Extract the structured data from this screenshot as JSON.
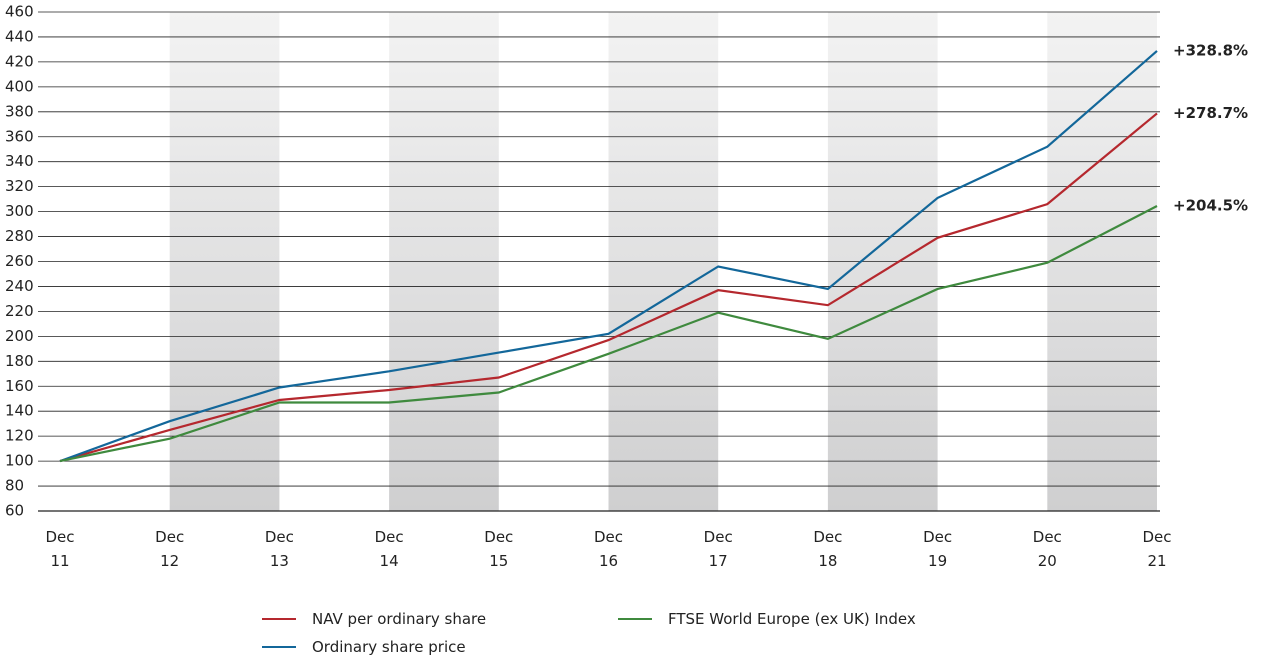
{
  "chart_data": {
    "type": "line",
    "categories": [
      "Dec 11",
      "Dec 12",
      "Dec 13",
      "Dec 14",
      "Dec 15",
      "Dec 16",
      "Dec 17",
      "Dec 18",
      "Dec 19",
      "Dec 20",
      "Dec 21"
    ],
    "series": [
      {
        "name": "NAV per ordinary share",
        "color": "#b5282e",
        "values": [
          100,
          125,
          149,
          157,
          167,
          197,
          237,
          225,
          279,
          306,
          378.7
        ],
        "end_label": "+278.7%"
      },
      {
        "name": "Ordinary share price",
        "color": "#13679a",
        "values": [
          100,
          132,
          159,
          172,
          187,
          202,
          256,
          238,
          311,
          352,
          428.8
        ],
        "end_label": "+328.8%"
      },
      {
        "name": "FTSE World Europe (ex UK) Index",
        "color": "#3f8a3e",
        "values": [
          100,
          118,
          147,
          147,
          155,
          186,
          219,
          198,
          238,
          259,
          304.5
        ],
        "end_label": "+204.5%"
      }
    ],
    "ylim": [
      60,
      460
    ],
    "yticks": [
      60,
      80,
      100,
      120,
      140,
      160,
      180,
      200,
      220,
      240,
      260,
      280,
      300,
      320,
      340,
      360,
      380,
      400,
      420,
      440,
      460
    ],
    "grid": true
  }
}
